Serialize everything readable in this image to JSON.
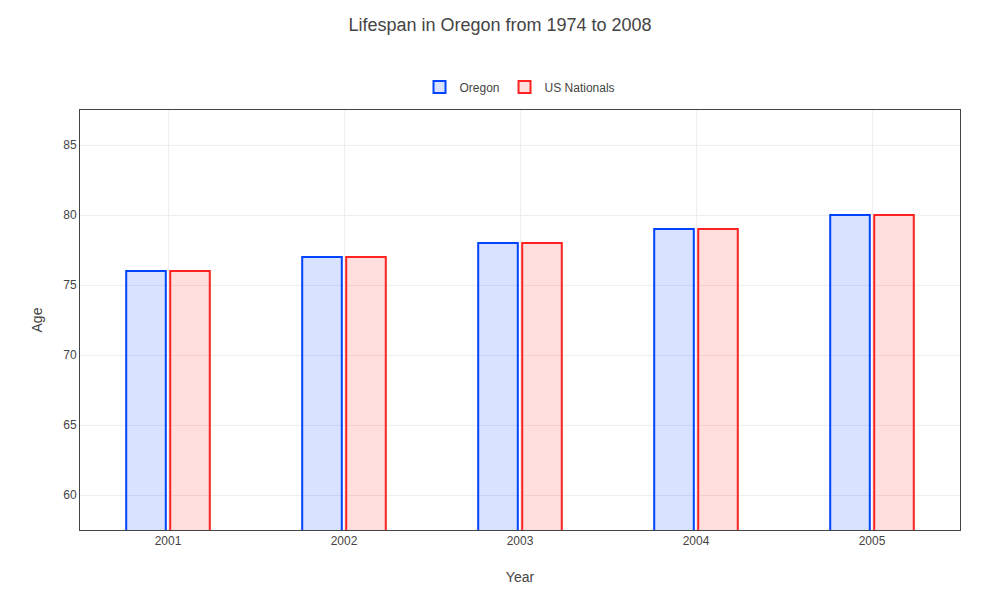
{
  "chart_data": {
    "type": "bar",
    "title": "Lifespan in Oregon from 1974 to 2008",
    "xlabel": "Year",
    "ylabel": "Age",
    "categories": [
      "2001",
      "2002",
      "2003",
      "2004",
      "2005"
    ],
    "series": [
      {
        "name": "Oregon",
        "color": "#0044ff",
        "values": [
          76.0,
          77.0,
          78.0,
          79.0,
          80.0
        ]
      },
      {
        "name": "US Nationals",
        "color": "#ff2222",
        "values": [
          76.0,
          77.0,
          78.0,
          79.0,
          80.0
        ]
      }
    ],
    "ylim": [
      57.5,
      87.5
    ],
    "yticks": [
      60,
      65,
      70,
      75,
      80,
      85
    ],
    "grid": true,
    "legend": "top"
  }
}
